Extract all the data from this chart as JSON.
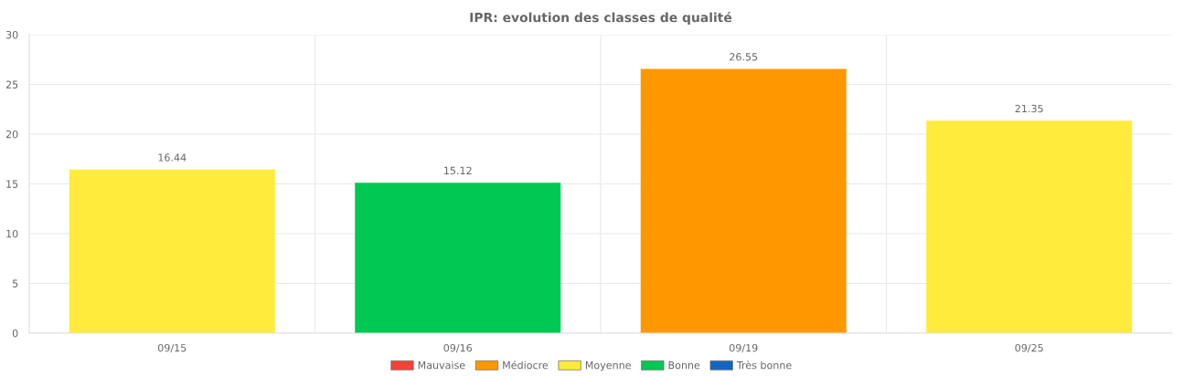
{
  "chart_data": {
    "type": "bar",
    "title": "IPR: evolution des classes de qualité",
    "categories": [
      "09/15",
      "09/16",
      "09/19",
      "09/25"
    ],
    "stacked": true,
    "series": [
      {
        "name": "Mauvaise",
        "color": "#f44336",
        "values": [
          null,
          null,
          null,
          null
        ]
      },
      {
        "name": "Médiocre",
        "color": "#ff9800",
        "values": [
          null,
          null,
          26.55,
          null
        ]
      },
      {
        "name": "Moyenne",
        "color": "#ffeb3b",
        "values": [
          16.44,
          null,
          null,
          21.35
        ]
      },
      {
        "name": "Bonne",
        "color": "#00c853",
        "values": [
          null,
          15.12,
          null,
          null
        ]
      },
      {
        "name": "Très bonne",
        "color": "#1565c0",
        "values": [
          null,
          null,
          null,
          null
        ]
      }
    ],
    "ylim": [
      0,
      30
    ],
    "yticks": [
      0,
      5,
      10,
      15,
      20,
      25,
      30
    ],
    "grid": true,
    "data_labels": true,
    "legend": "bottom"
  }
}
